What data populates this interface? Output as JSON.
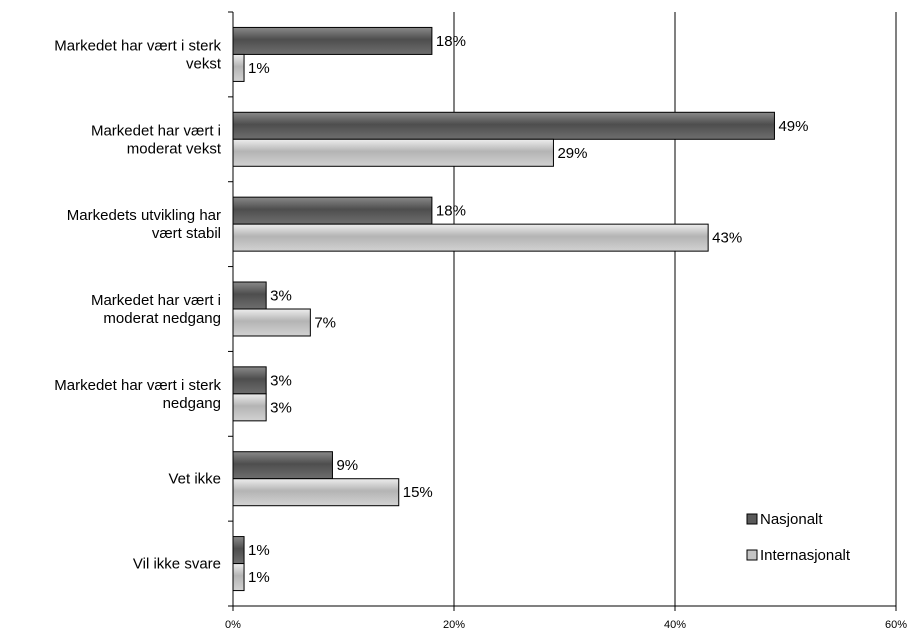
{
  "chart_data": {
    "type": "bar",
    "orientation": "horizontal",
    "categories": [
      [
        "Markedet har vært i sterk",
        "vekst"
      ],
      [
        "Markedet har vært i",
        "moderat vekst"
      ],
      [
        "Markedets utvikling har",
        "vært stabil"
      ],
      [
        "Markedet har vært i",
        "moderat nedgang"
      ],
      [
        "Markedet har vært i sterk",
        "nedgang"
      ],
      [
        "Vet ikke"
      ],
      [
        "Vil ikke svare"
      ]
    ],
    "series": [
      {
        "name": "Nasjonalt",
        "values": [
          18,
          49,
          18,
          3,
          3,
          9,
          1
        ],
        "color": "#5a5a5a"
      },
      {
        "name": "Internasjonalt",
        "values": [
          1,
          29,
          43,
          7,
          3,
          15,
          1
        ],
        "color": "#c4c4c4"
      }
    ],
    "value_labels": [
      [
        "18%",
        "49%",
        "18%",
        "3%",
        "3%",
        "9%",
        "1%"
      ],
      [
        "1%",
        "29%",
        "43%",
        "7%",
        "3%",
        "15%",
        "1%"
      ]
    ],
    "xlim": [
      0,
      60
    ],
    "xticks": [
      0,
      20,
      40,
      60
    ],
    "xtick_labels": [
      "0%",
      "20%",
      "40%",
      "60%"
    ],
    "grid": "vertical",
    "legend": "bottom-right"
  }
}
